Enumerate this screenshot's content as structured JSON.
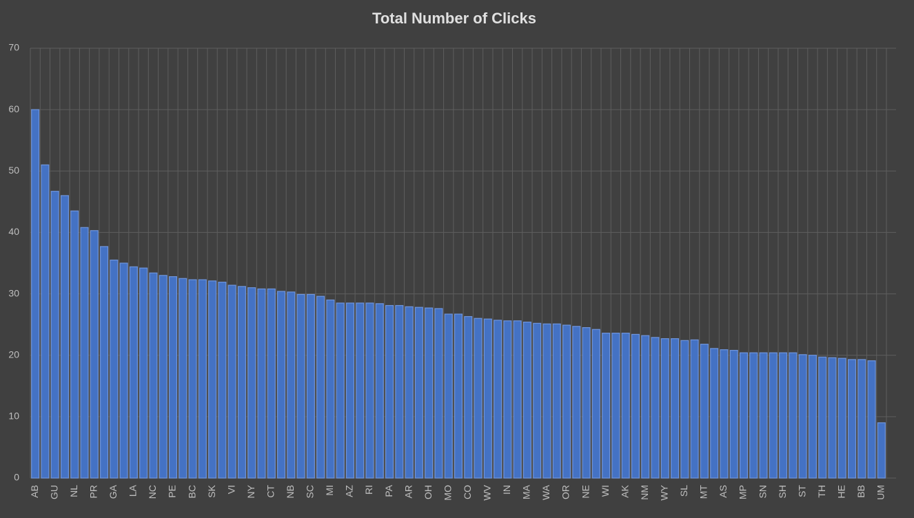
{
  "chart_data": {
    "type": "bar",
    "title": "Total Number of Clicks",
    "categories": [
      "AB",
      null,
      "GU",
      null,
      "NL",
      null,
      "PR",
      null,
      "GA",
      null,
      "LA",
      null,
      "NC",
      null,
      "PE",
      null,
      "BC",
      null,
      "SK",
      null,
      "VI",
      null,
      "NY",
      null,
      "CT",
      null,
      "NB",
      null,
      "SC",
      null,
      "MI",
      null,
      "AZ",
      null,
      "RI",
      null,
      "PA",
      null,
      "AR",
      null,
      "OH",
      null,
      "MO",
      null,
      "CO",
      null,
      "WV",
      null,
      "IN",
      null,
      "MA",
      null,
      "WA",
      null,
      "OR",
      null,
      "NE",
      null,
      "WI",
      null,
      "AK",
      null,
      "NM",
      null,
      "WY",
      null,
      "SL",
      null,
      "MT",
      null,
      "AS",
      null,
      "MP",
      null,
      "SN",
      null,
      "SH",
      null,
      "ST",
      null,
      "TH",
      null,
      "HE",
      null,
      "BB",
      null,
      "UM"
    ],
    "values": [
      60,
      51,
      46.7,
      46,
      43.5,
      40.8,
      40.3,
      37.7,
      35.5,
      35,
      34.4,
      34.2,
      33.4,
      33,
      32.8,
      32.5,
      32.3,
      32.3,
      32.1,
      31.9,
      31.4,
      31.2,
      31,
      30.8,
      30.8,
      30.4,
      30.3,
      29.9,
      29.9,
      29.6,
      29,
      28.5,
      28.5,
      28.5,
      28.5,
      28.4,
      28.1,
      28.1,
      27.9,
      27.8,
      27.7,
      27.6,
      26.7,
      26.7,
      26.3,
      26,
      25.9,
      25.7,
      25.6,
      25.6,
      25.4,
      25.2,
      25.1,
      25.1,
      24.9,
      24.7,
      24.5,
      24.2,
      23.6,
      23.6,
      23.6,
      23.4,
      23.2,
      22.9,
      22.7,
      22.7,
      22.4,
      22.5,
      21.8,
      21.1,
      20.9,
      20.8,
      20.4,
      20.4,
      20.4,
      20.4,
      20.4,
      20.4,
      20.1,
      20,
      19.7,
      19.6,
      19.5,
      19.3,
      19.3,
      19.1,
      9
    ],
    "color": "#4472c4",
    "ylim": [
      0,
      70
    ],
    "yticks": [
      0,
      10,
      20,
      30,
      40,
      50,
      60,
      70
    ],
    "grid": true
  }
}
